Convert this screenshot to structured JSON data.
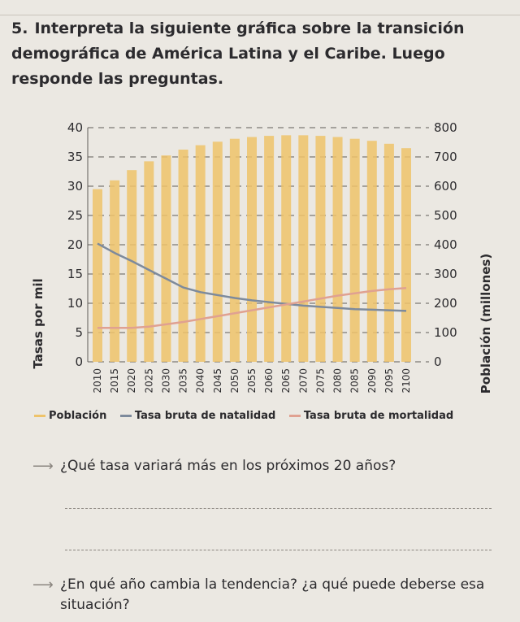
{
  "exercise": {
    "number": "5.",
    "instruction": "Interpreta la siguiente gráfica sobre la transición demográfica de América Latina y el Caribe. Luego responde las preguntas."
  },
  "chart_data": {
    "type": "bar",
    "title": "",
    "categories": [
      "2010",
      "2015",
      "2020",
      "2025",
      "2030",
      "2035",
      "2040",
      "2045",
      "2050",
      "2055",
      "2060",
      "2065",
      "2070",
      "2075",
      "2080",
      "2085",
      "2090",
      "2095",
      "2100"
    ],
    "y_left": {
      "label": "Tasas por mil",
      "range": [
        0,
        40
      ],
      "ticks": [
        "0",
        "5",
        "10",
        "15",
        "20",
        "25",
        "30",
        "35",
        "40"
      ]
    },
    "y_right": {
      "label": "Población (millones)",
      "range": [
        0,
        800
      ],
      "ticks": [
        "0",
        "100",
        "200",
        "300",
        "400",
        "500",
        "600",
        "700",
        "800"
      ]
    },
    "grid": "dashed horizontal",
    "legend_position": "bottom",
    "series": [
      {
        "name": "Población",
        "type": "bar",
        "axis": "right",
        "color": "#eec36a",
        "values": [
          590,
          620,
          655,
          685,
          705,
          725,
          740,
          752,
          762,
          768,
          772,
          774,
          774,
          772,
          768,
          762,
          755,
          745,
          730
        ]
      },
      {
        "name": "Tasa bruta de natalidad",
        "type": "line",
        "axis": "left",
        "color": "#7d8a9c",
        "values": [
          20.2,
          18.6,
          17.2,
          15.7,
          14.2,
          12.7,
          11.9,
          11.4,
          10.9,
          10.5,
          10.2,
          9.9,
          9.6,
          9.4,
          9.2,
          9.0,
          8.9,
          8.8,
          8.7
        ]
      },
      {
        "name": "Tasa bruta de mortalidad",
        "type": "line",
        "axis": "left",
        "color": "#e0a191",
        "values": [
          5.8,
          5.8,
          5.8,
          6.0,
          6.4,
          6.8,
          7.3,
          7.8,
          8.3,
          8.8,
          9.3,
          9.8,
          10.3,
          10.8,
          11.3,
          11.7,
          12.1,
          12.4,
          12.6
        ]
      }
    ]
  },
  "questions": [
    {
      "text": "¿Qué tasa variará más en los próximos 20 años?"
    },
    {
      "text": "¿En qué año cambia la tendencia? ¿a qué puede deberse esa situación?"
    }
  ]
}
